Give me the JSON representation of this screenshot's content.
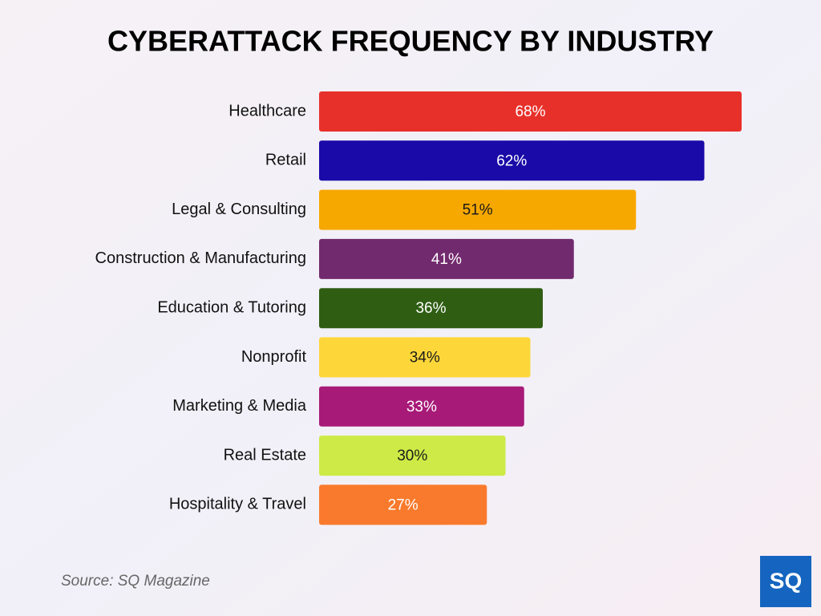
{
  "chart_data": {
    "type": "bar",
    "orientation": "horizontal",
    "title": "CYBERATTACK FREQUENCY BY INDUSTRY",
    "categories": [
      "Healthcare",
      "Retail",
      "Legal & Consulting",
      "Construction & Manufacturing",
      "Education & Tutoring",
      "Nonprofit",
      "Marketing & Media",
      "Real Estate",
      "Hospitality & Travel"
    ],
    "values": [
      68,
      62,
      51,
      41,
      36,
      34,
      33,
      30,
      27
    ],
    "value_labels": [
      "68%",
      "62%",
      "51%",
      "41%",
      "36%",
      "34%",
      "33%",
      "30%",
      "27%"
    ],
    "colors": [
      "#e8302a",
      "#1a0aa8",
      "#f7a800",
      "#722a6e",
      "#2f5e13",
      "#fdd73a",
      "#a81a78",
      "#cdea46",
      "#f97a2c"
    ],
    "label_colors": [
      "#ffffff",
      "#ffffff",
      "#1a1a1a",
      "#ffffff",
      "#ffffff",
      "#1a1a1a",
      "#ffffff",
      "#1a1a1a",
      "#ffffff"
    ],
    "source": "Source: SQ Magazine",
    "logo": "SQ"
  }
}
